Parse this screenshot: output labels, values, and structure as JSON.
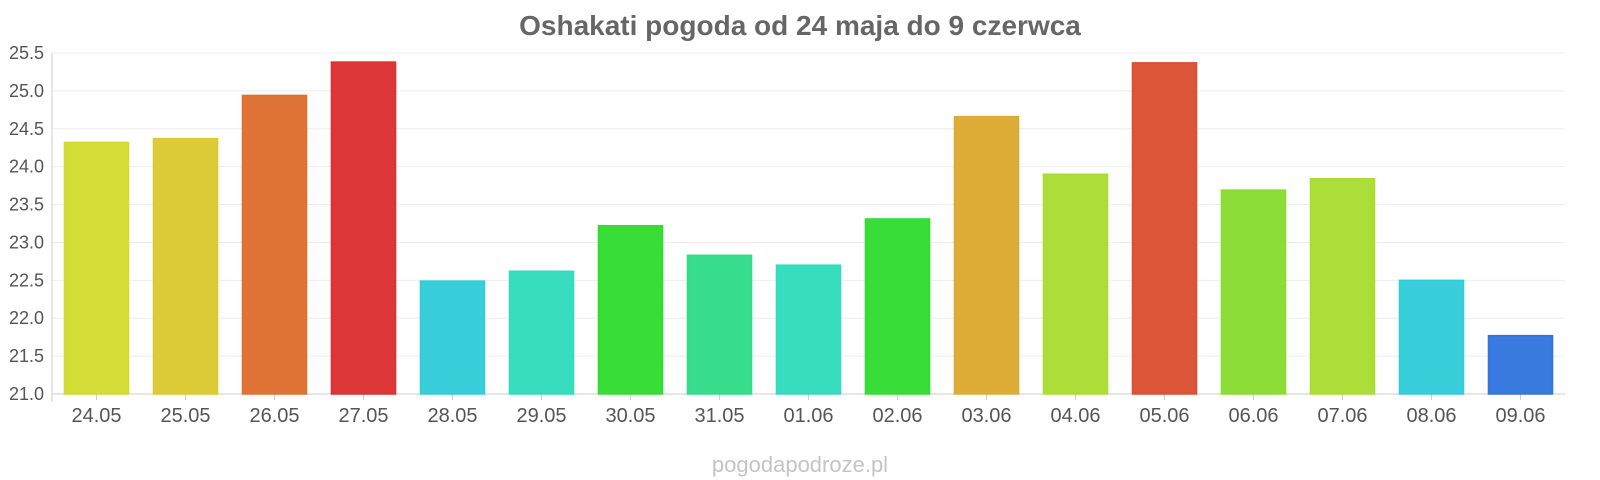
{
  "chart_data": {
    "type": "bar",
    "title": "Oshakati pogoda od 24 maja do 9 czerwca",
    "xlabel": "",
    "ylabel": "",
    "categories": [
      "24.05",
      "25.05",
      "26.05",
      "27.05",
      "28.05",
      "29.05",
      "30.05",
      "31.05",
      "01.06",
      "02.06",
      "03.06",
      "04.06",
      "05.06",
      "06.06",
      "07.06",
      "08.06",
      "09.06"
    ],
    "values": [
      24.32,
      24.37,
      24.94,
      25.38,
      22.49,
      22.62,
      23.22,
      22.83,
      22.7,
      23.31,
      24.66,
      23.9,
      25.37,
      23.69,
      23.84,
      22.5,
      21.77
    ],
    "colors": [
      "#d2dc2f",
      "#dcc82f",
      "#df6e2f",
      "#dc2f2f",
      "#30ccd9",
      "#30dcbb",
      "#30dc30",
      "#30dc88",
      "#30dcbb",
      "#30dc30",
      "#dcaa30",
      "#aadc30",
      "#dc4e30",
      "#88dc30",
      "#aadc30",
      "#30ccd9",
      "#3075dc"
    ],
    "ylim": [
      21.0,
      25.5
    ],
    "yticks": [
      "21.0",
      "21.5",
      "22.0",
      "22.5",
      "23.0",
      "23.5",
      "24.0",
      "24.5",
      "25.0",
      "25.5"
    ],
    "grid": true,
    "legend": "none"
  },
  "watermark": "pogodapodroze.pl"
}
